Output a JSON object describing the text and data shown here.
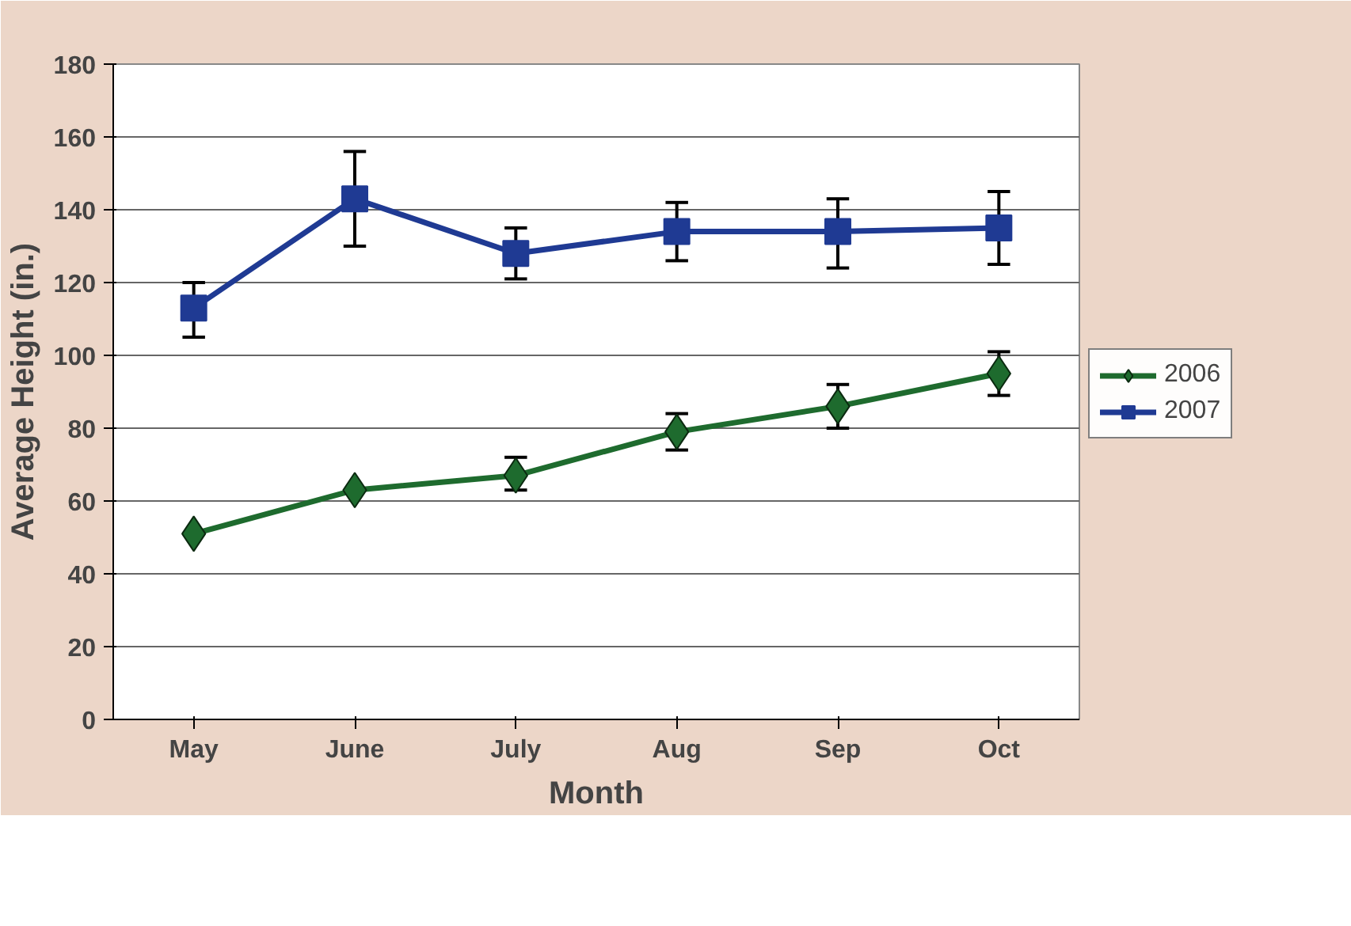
{
  "chart_data": {
    "type": "line",
    "xlabel": "Month",
    "ylabel": "Average Height (in.)",
    "categories": [
      "May",
      "June",
      "July",
      "Aug",
      "Sep",
      "Oct"
    ],
    "series": [
      {
        "name": "2006",
        "color": "#1e6b2e",
        "marker": "diamond",
        "values": [
          51,
          63,
          67,
          79,
          86,
          95
        ],
        "errors": [
          null,
          null,
          [
            63,
            72
          ],
          [
            74,
            84
          ],
          [
            80,
            92
          ],
          [
            89,
            101
          ]
        ]
      },
      {
        "name": "2007",
        "color": "#1f3a93",
        "marker": "square",
        "values": [
          113,
          143,
          128,
          134,
          134,
          135
        ],
        "errors": [
          [
            105,
            120
          ],
          [
            130,
            156
          ],
          [
            121,
            135
          ],
          [
            126,
            142
          ],
          [
            124,
            143
          ],
          [
            125,
            145
          ]
        ]
      }
    ],
    "ylim": [
      0,
      180
    ],
    "yticks": [
      0,
      20,
      40,
      60,
      80,
      100,
      120,
      140,
      160,
      180
    ],
    "grid": "y",
    "legend": "right",
    "line_style": "solid"
  }
}
